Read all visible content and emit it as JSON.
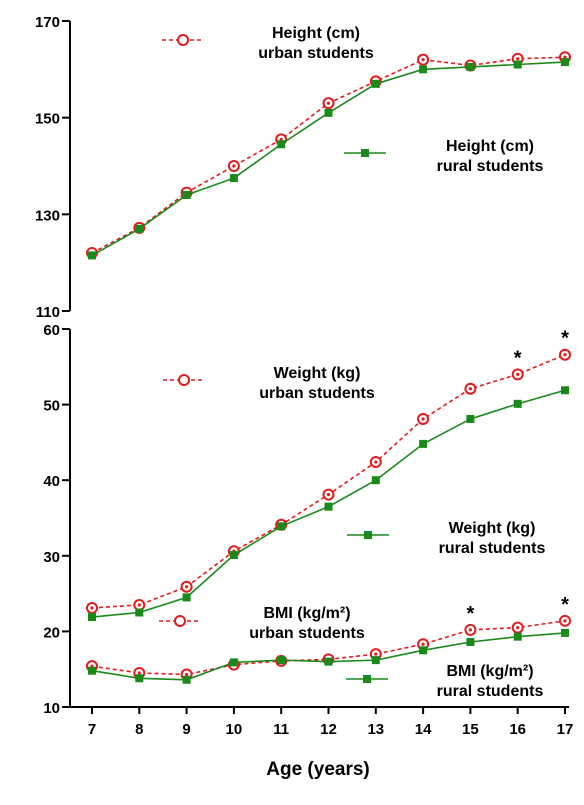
{
  "chart_data": {
    "type": "line",
    "xlabel": "Age (years)",
    "categories": [
      "7",
      "8",
      "9",
      "10",
      "11",
      "12",
      "13",
      "14",
      "15",
      "16",
      "17"
    ],
    "panels": [
      {
        "name": "height",
        "ylim": [
          110,
          170
        ],
        "yticks": [
          "110",
          "130",
          "150",
          "170"
        ],
        "series": [
          {
            "name_lines": [
              "Height (cm)",
              "urban students"
            ],
            "marker": "circle",
            "style": "dashed",
            "color": "#e41a1c",
            "values": [
              122,
              127.2,
              134.5,
              140,
              145.5,
              153,
              157.5,
              162,
              160.8,
              162.2,
              162.5
            ]
          },
          {
            "name_lines": [
              "Height (cm)",
              "rural students"
            ],
            "marker": "square",
            "style": "solid",
            "color": "#1a8a1a",
            "values": [
              121.5,
              127,
              134,
              137.5,
              144.5,
              151,
              157,
              160,
              160.5,
              161,
              161.5
            ]
          }
        ],
        "asterisks": []
      },
      {
        "name": "weight_bmi",
        "ylim": [
          10,
          60
        ],
        "yticks": [
          "10",
          "20",
          "30",
          "40",
          "50",
          "60"
        ],
        "series": [
          {
            "name_lines": [
              "Weight (kg)",
              "urban students"
            ],
            "marker": "circle",
            "style": "dashed",
            "color": "#e41a1c",
            "values": [
              23.1,
              23.5,
              25.9,
              30.6,
              34.1,
              38.1,
              42.4,
              48.1,
              52.1,
              54.0,
              56.6
            ]
          },
          {
            "name_lines": [
              "Weight (kg)",
              "rural students"
            ],
            "marker": "square",
            "style": "solid",
            "color": "#1a8a1a",
            "values": [
              21.9,
              22.5,
              24.5,
              30.1,
              33.9,
              36.5,
              40.0,
              44.8,
              48.1,
              50.1,
              51.9
            ]
          },
          {
            "name_lines": [
              "BMI (kg/m²)",
              "urban students"
            ],
            "marker": "circle",
            "style": "dashed",
            "color": "#e41a1c",
            "values": [
              15.4,
              14.5,
              14.3,
              15.6,
              16.1,
              16.3,
              17.0,
              18.3,
              20.2,
              20.5,
              21.4
            ]
          },
          {
            "name_lines": [
              "BMI (kg/m²)",
              "rural students"
            ],
            "marker": "square",
            "style": "solid",
            "color": "#1a8a1a",
            "values": [
              14.8,
              13.8,
              13.6,
              15.9,
              16.2,
              16.0,
              16.2,
              17.5,
              18.6,
              19.3,
              19.8
            ]
          }
        ],
        "asterisks": [
          {
            "label": "*",
            "x": "16",
            "y": 54.0
          },
          {
            "label": "*",
            "x": "17",
            "y": 56.6
          },
          {
            "label": "*",
            "x": "15",
            "y": 20.2
          },
          {
            "label": "*",
            "x": "17",
            "y": 21.4
          }
        ]
      }
    ]
  }
}
